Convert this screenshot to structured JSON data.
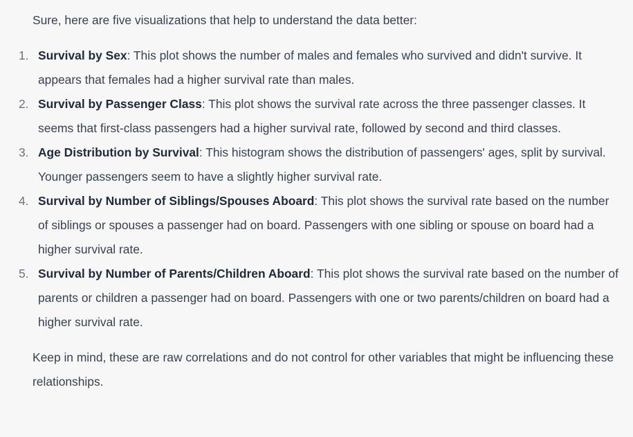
{
  "message": {
    "intro": "Sure, here are five visualizations that help to understand the data better:",
    "items": [
      {
        "number": "1.",
        "title": "Survival by Sex",
        "text": ": This plot shows the number of males and females who survived and didn't survive. It appears that females had a higher survival rate than males."
      },
      {
        "number": "2.",
        "title": "Survival by Passenger Class",
        "text": ": This plot shows the survival rate across the three passenger classes. It seems that first-class passengers had a higher survival rate, followed by second and third classes."
      },
      {
        "number": "3.",
        "title": "Age Distribution by Survival",
        "text": ": This histogram shows the distribution of passengers' ages, split by survival. Younger passengers seem to have a slightly higher survival rate."
      },
      {
        "number": "4.",
        "title": "Survival by Number of Siblings/Spouses Aboard",
        "text": ": This plot shows the survival rate based on the number of siblings or spouses a passenger had on board. Passengers with one sibling or spouse on board had a higher survival rate."
      },
      {
        "number": "5.",
        "title": "Survival by Number of Parents/Children Aboard",
        "text": ": This plot shows the survival rate based on the number of parents or children a passenger had on board. Passengers with one or two parents/children on board had a higher survival rate."
      }
    ],
    "closing": "Keep in mind, these are raw correlations and do not control for other variables that might be influencing these relationships."
  }
}
